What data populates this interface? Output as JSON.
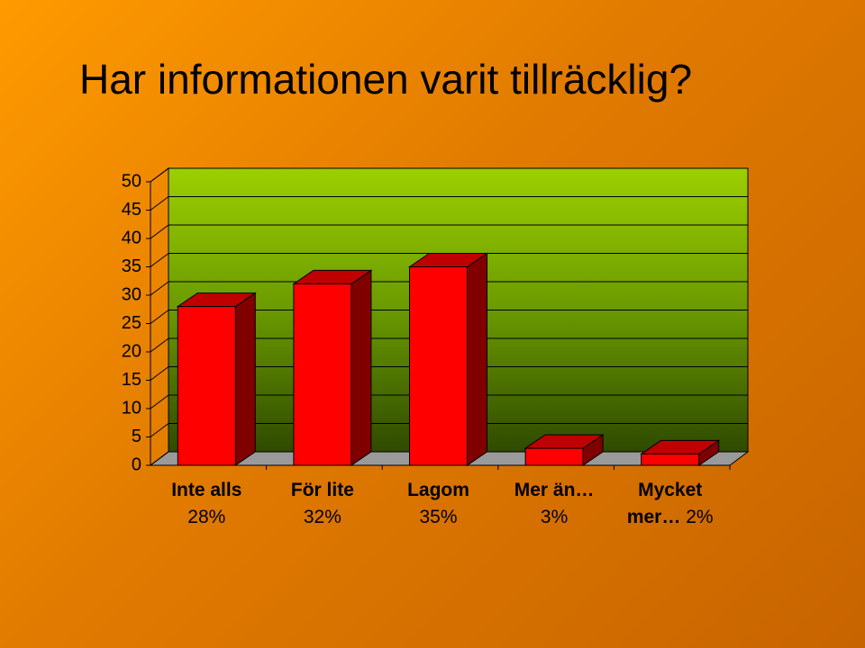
{
  "chart_data": {
    "type": "bar3d",
    "title": "Har informationen varit tillräcklig?",
    "categories": [
      "Inte alls",
      "För lite",
      "Lagom",
      "Mer än…",
      "Mycket mer…"
    ],
    "values": [
      28,
      32,
      35,
      3,
      2
    ],
    "value_labels": [
      "28%",
      "32%",
      "35%",
      "3%",
      "2%"
    ],
    "color": "#ff0000",
    "ylim": [
      0,
      50
    ],
    "yticks": [
      0,
      5,
      10,
      15,
      20,
      25,
      30,
      35,
      40,
      45,
      50
    ],
    "grid": true
  }
}
